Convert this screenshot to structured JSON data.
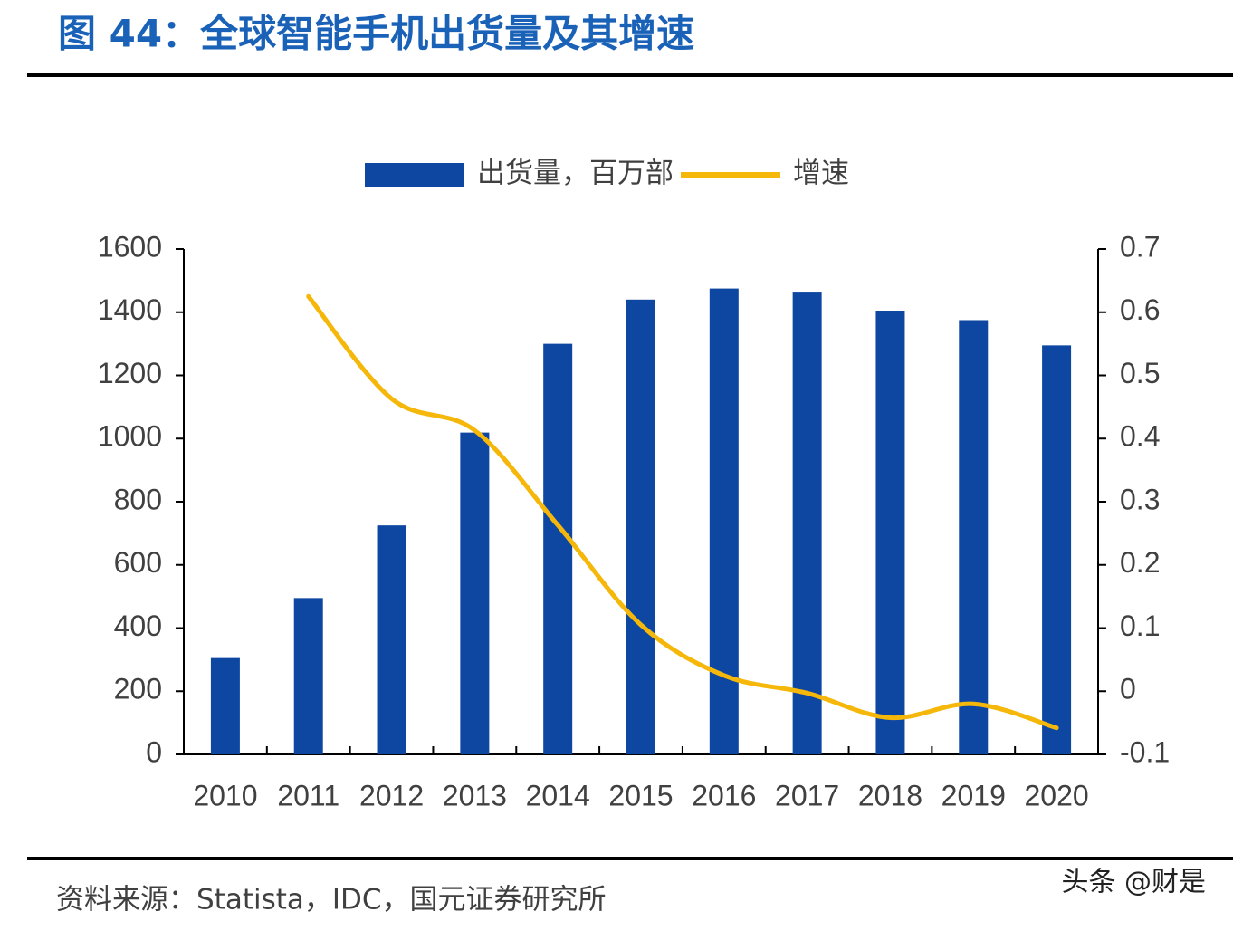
{
  "chart_data": {
    "type": "bar-line",
    "title": "图 44：全球智能手机出货量及其增速",
    "source": "资料来源：Statista，IDC，国元证券研究所",
    "watermark": "头条 @财是",
    "categories": [
      "2010",
      "2011",
      "2012",
      "2013",
      "2014",
      "2015",
      "2016",
      "2017",
      "2018",
      "2019",
      "2020"
    ],
    "series": [
      {
        "name": "出货量，百万部",
        "type": "bar",
        "color": "#0d47a1",
        "values": [
          305,
          495,
          725,
          1019,
          1300,
          1440,
          1475,
          1465,
          1405,
          1375,
          1295
        ]
      },
      {
        "name": "增速",
        "type": "line",
        "axis": "y2",
        "color": "#f5b80a",
        "values": [
          null,
          0.625,
          0.463,
          0.413,
          0.263,
          0.105,
          0.025,
          -0.003,
          -0.042,
          -0.02,
          -0.058
        ]
      }
    ],
    "ylim": [
      0,
      1600
    ],
    "yticks": [
      0,
      200,
      400,
      600,
      800,
      1000,
      1200,
      1400,
      1600
    ],
    "y2lim": [
      -0.1,
      0.7
    ],
    "y2ticks": [
      -0.1,
      0,
      0.1,
      0.2,
      0.3,
      0.4,
      0.5,
      0.6,
      0.7
    ],
    "legend": "top",
    "grid": false
  }
}
